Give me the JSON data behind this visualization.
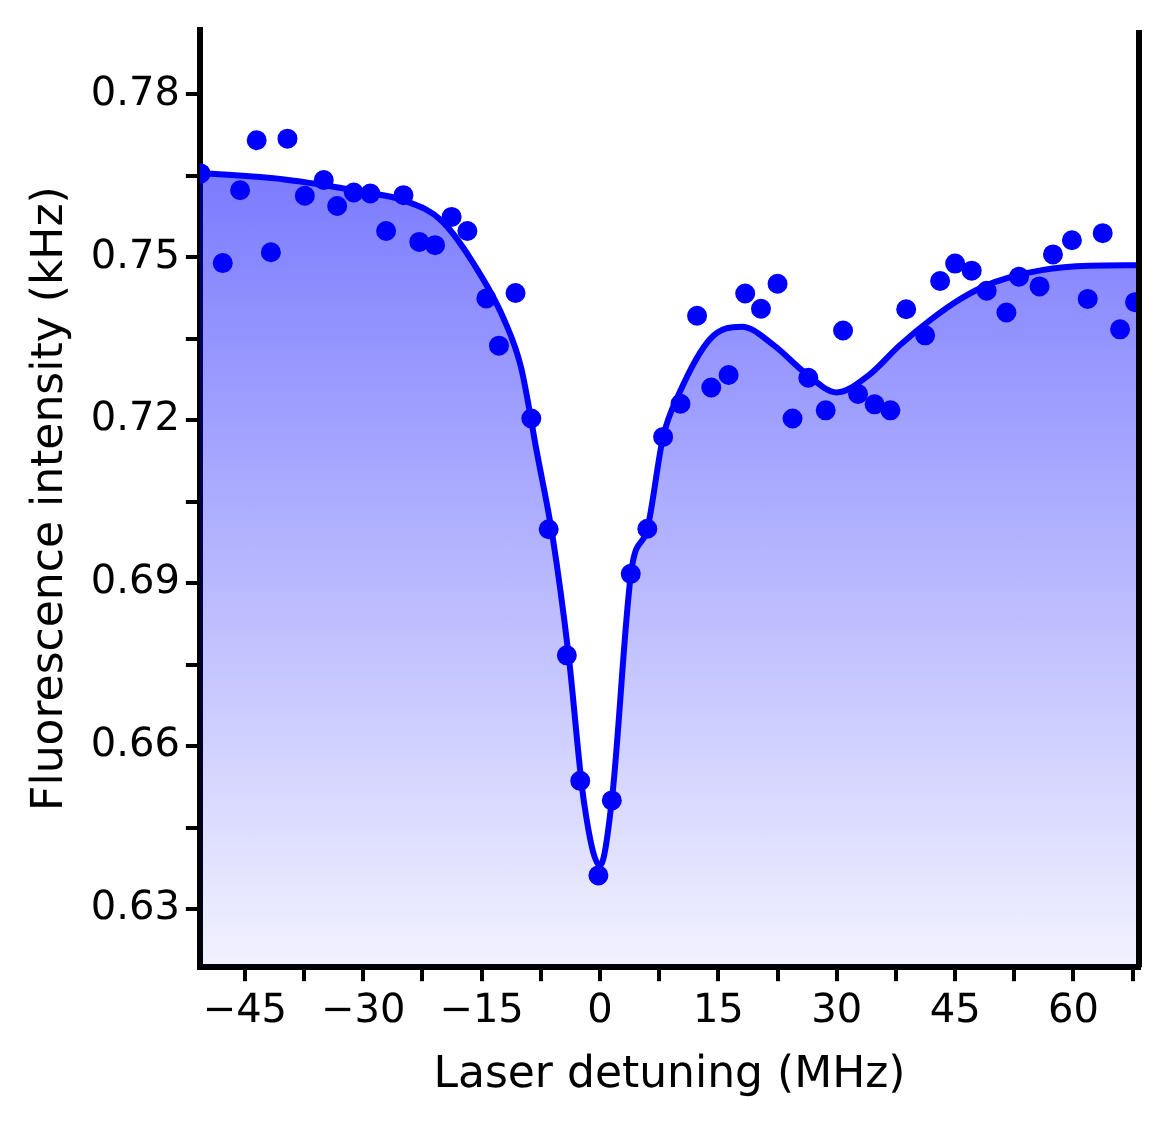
{
  "chart_data": {
    "type": "scatter",
    "xlabel": "Laser detuning (MHz)",
    "ylabel": "Fluorescence intensity (kHz)",
    "xlim": [
      -50.7,
      68.3
    ],
    "ylim": [
      0.6193,
      0.7918
    ],
    "xticks": [
      -45,
      {
        "value": -37.5,
        "label": null
      },
      -30,
      {
        "value": -22.5,
        "label": null
      },
      -15,
      {
        "value": -7.5,
        "label": null
      },
      0,
      {
        "value": 7.5,
        "label": null
      },
      15,
      {
        "value": 22.5,
        "label": null
      },
      30,
      {
        "value": 37.5,
        "label": null
      },
      45,
      {
        "value": 52.5,
        "label": null
      },
      60,
      {
        "value": 67.5,
        "label": null
      }
    ],
    "yticks": [
      0.63,
      {
        "value": 0.645,
        "label": null
      },
      0.66,
      {
        "value": 0.675,
        "label": null
      },
      0.69,
      {
        "value": 0.705,
        "label": null
      },
      0.72,
      {
        "value": 0.735,
        "label": null
      },
      0.75,
      {
        "value": 0.765,
        "label": null
      },
      0.78
    ],
    "grid": false,
    "legend": false,
    "marker": "circle",
    "series": [
      {
        "type": "scatter",
        "color": "#0000ff",
        "x": [
          -50.6,
          -47.8,
          -45.6,
          -43.5,
          -41.7,
          -39.6,
          -37.4,
          -35.0,
          -33.3,
          -31.2,
          -29.1,
          -27.1,
          -24.9,
          -22.9,
          -20.9,
          -18.8,
          -16.8,
          -14.4,
          -12.8,
          -10.7,
          -8.7,
          -6.5,
          -4.2,
          -2.5,
          -0.2,
          1.5,
          3.9,
          6.0,
          8.0,
          10.2,
          12.3,
          14.1,
          16.3,
          18.4,
          20.4,
          22.5,
          24.4,
          26.4,
          28.6,
          30.8,
          32.7,
          34.8,
          36.8,
          38.8,
          41.2,
          43.1,
          45.0,
          47.1,
          49.0,
          51.5,
          53.1,
          55.7,
          57.4,
          59.8,
          61.8,
          63.7,
          65.9,
          67.8
        ],
        "values": [
          0.7654,
          0.7489,
          0.7623,
          0.7715,
          0.7509,
          0.7718,
          0.7613,
          0.7642,
          0.7594,
          0.7619,
          0.7617,
          0.7548,
          0.7614,
          0.7528,
          0.7522,
          0.7574,
          0.7548,
          0.7424,
          0.7337,
          0.7434,
          0.7203,
          0.6999,
          0.6767,
          0.6536,
          0.6362,
          0.65,
          0.6917,
          0.7,
          0.7169,
          0.723,
          0.7392,
          0.726,
          0.7283,
          0.7433,
          0.7405,
          0.7451,
          0.7203,
          0.7278,
          0.7218,
          0.7365,
          0.7248,
          0.7229,
          0.7218,
          0.7404,
          0.7356,
          0.7456,
          0.7488,
          0.7475,
          0.7438,
          0.7398,
          0.7464,
          0.7446,
          0.7505,
          0.7531,
          0.7423,
          0.7544,
          0.7367,
          0.7417
        ]
      },
      {
        "type": "area",
        "color": "#0000ff",
        "marker": "none",
        "x": [
          -50.7,
          -40,
          -30,
          -25,
          -20,
          -15,
          -12,
          -10,
          -8,
          -6,
          -4,
          -2,
          0,
          1.5,
          4,
          6,
          8,
          10,
          14,
          18,
          22,
          26,
          30,
          34,
          38,
          42,
          46,
          50,
          56,
          62,
          68.3
        ],
        "values": [
          0.7655,
          0.7643,
          0.762,
          0.7605,
          0.7566,
          0.7464,
          0.738,
          0.7297,
          0.7141,
          0.6985,
          0.677,
          0.6494,
          0.638,
          0.65,
          0.6925,
          0.7,
          0.7169,
          0.7248,
          0.735,
          0.7372,
          0.7338,
          0.7287,
          0.7251,
          0.7282,
          0.7338,
          0.7386,
          0.7426,
          0.7454,
          0.7476,
          0.7484,
          0.7485
        ]
      }
    ]
  }
}
